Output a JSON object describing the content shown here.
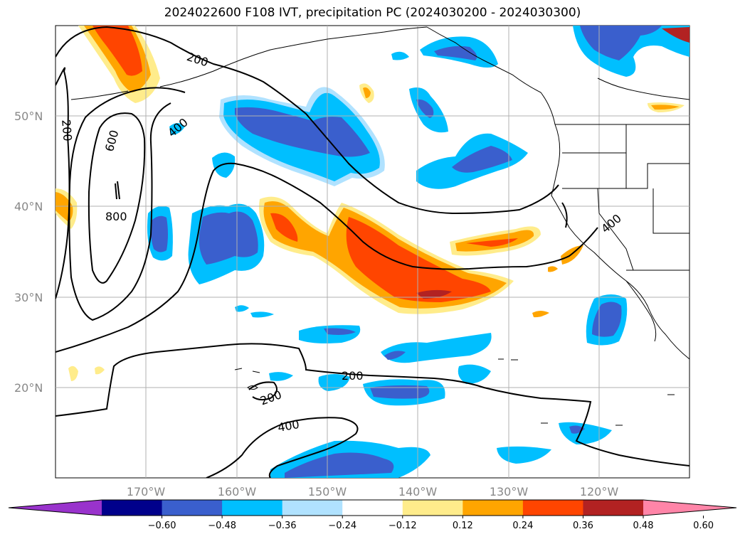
{
  "title": "2024022600 F108 IVT, precipitation PC (2024030200 - 2024030300)",
  "lat_labels": [
    "50°N",
    "40°N",
    "30°N",
    "20°N"
  ],
  "lon_labels": [
    "170°W",
    "160°W",
    "150°W",
    "140°W",
    "130°W",
    "120°W"
  ],
  "colorbar": {
    "ticks": [
      "−0.60",
      "−0.48",
      "−0.36",
      "−0.24",
      "−0.12",
      "0.12",
      "0.24",
      "0.36",
      "0.48",
      "0.60"
    ],
    "colors": [
      "#9933cc",
      "#00008b",
      "#3a5fcd",
      "#00bfff",
      "#b0e2ff",
      "#ffffff",
      "#ffec8b",
      "#ffa500",
      "#ff4500",
      "#b22222",
      "#ff85a8"
    ]
  },
  "contour_labels": [
    "200",
    "600",
    "800",
    "400",
    "200",
    "200",
    "200",
    "400",
    "400"
  ],
  "colors": {
    "grid": "#b0b0b0",
    "contour": "#000000",
    "coast": "#000000"
  }
}
